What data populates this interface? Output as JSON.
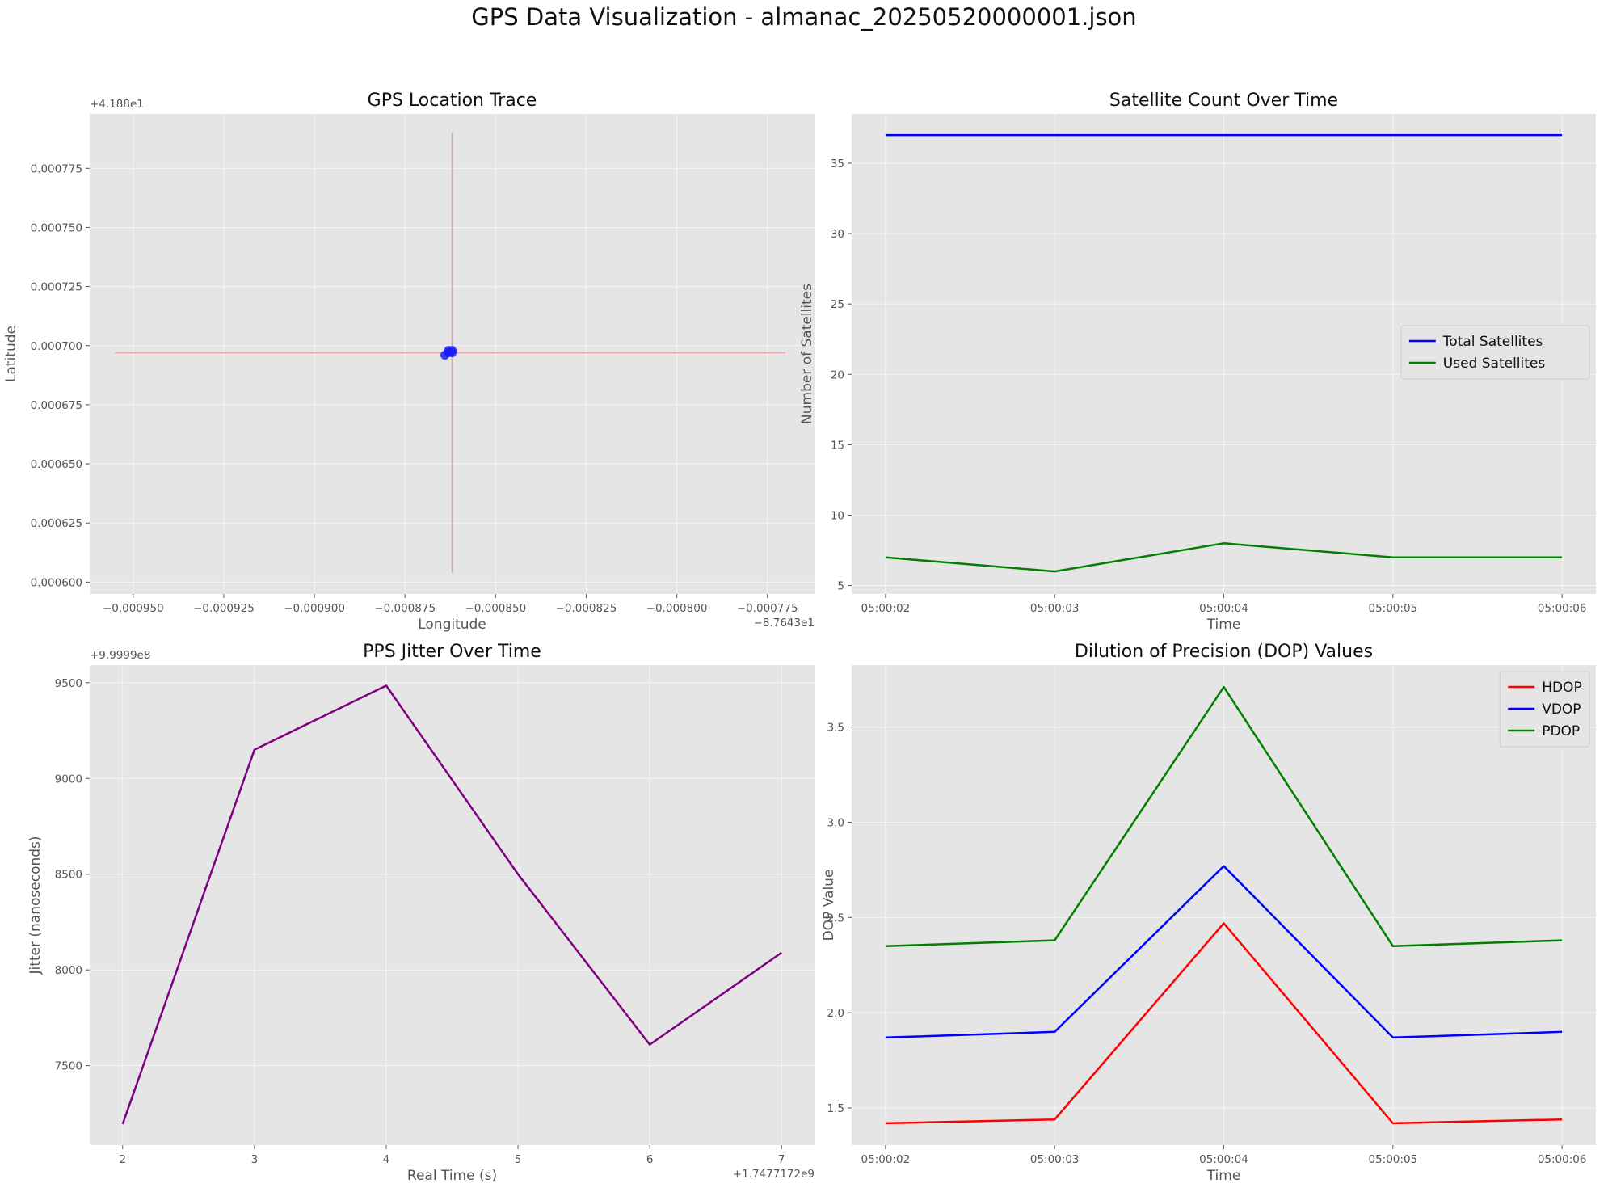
{
  "figure_title": "GPS Data Visualization - almanac_20250520000001.json",
  "colors": {
    "panel_bg": "#e5e5e5",
    "grid": "#ffffff",
    "trace_axis_lines": "#e8a0a0",
    "gps_points": "#1a1aff",
    "total_satellites": "#0000ff",
    "used_satellites": "#008000",
    "jitter": "#800080",
    "hdop": "#ff0000",
    "vdop": "#0000ff",
    "pdop": "#008000"
  },
  "chart_data": [
    {
      "id": "gps-location-trace",
      "type": "scatter",
      "title": "GPS Location Trace",
      "xlabel": "Longitude",
      "ylabel": "Latitude",
      "x_offset_label": "−8.7643e1",
      "y_offset_label": "+4.188e1",
      "xlim": [
        -0.000962,
        -0.000762
      ],
      "ylim": [
        0.000595,
        0.000798
      ],
      "x_ticks": [
        -0.00095,
        -0.000925,
        -0.0009,
        -0.000875,
        -0.00085,
        -0.000825,
        -0.0008,
        -0.000775
      ],
      "x_tick_labels": [
        "−0.000950",
        "−0.000925",
        "−0.000900",
        "−0.000875",
        "−0.000850",
        "−0.000825",
        "−0.000800",
        "−0.000775"
      ],
      "y_ticks": [
        0.0006,
        0.000625,
        0.00065,
        0.000675,
        0.0007,
        0.000725,
        0.00075,
        0.000775
      ],
      "y_tick_labels": [
        "0.000600",
        "0.000625",
        "0.000650",
        "0.000675",
        "0.000700",
        "0.000725",
        "0.000750",
        "0.000775"
      ],
      "crosshair": {
        "x": -0.000862,
        "y": 0.000697,
        "x_range": [
          -0.000955,
          -0.00077
        ],
        "y_range": [
          0.000604,
          0.00079
        ]
      },
      "points": [
        {
          "x": -0.000864,
          "y": 0.000696
        },
        {
          "x": -0.000862,
          "y": 0.000698
        },
        {
          "x": -0.000863,
          "y": 0.000697
        },
        {
          "x": -0.000862,
          "y": 0.000697
        },
        {
          "x": -0.000863,
          "y": 0.000698
        }
      ],
      "grid": true
    },
    {
      "id": "satellite-count",
      "type": "line",
      "title": "Satellite Count Over Time",
      "xlabel": "Time",
      "ylabel": "Number of Satellites",
      "categories": [
        "05:00:02",
        "05:00:03",
        "05:00:04",
        "05:00:05",
        "05:00:06"
      ],
      "ylim": [
        4.4,
        38.5
      ],
      "y_ticks": [
        5,
        10,
        15,
        20,
        25,
        30,
        35
      ],
      "series": [
        {
          "name": "Total Satellites",
          "values": [
            37,
            37,
            37,
            37,
            37
          ],
          "color": "#0000ff"
        },
        {
          "name": "Used Satellites",
          "values": [
            7,
            6,
            8,
            7,
            7
          ],
          "color": "#008000"
        }
      ],
      "legend": "center-right",
      "grid": true
    },
    {
      "id": "pps-jitter",
      "type": "line",
      "title": "PPS Jitter Over Time",
      "xlabel": "Real Time (s)",
      "ylabel": "Jitter (nanoseconds)",
      "x_offset_label": "+1.7477172e9",
      "y_offset_label": "+9.9999e8",
      "x": [
        2,
        3,
        4,
        5,
        6,
        7
      ],
      "xlim": [
        1.75,
        7.25
      ],
      "ylim": [
        7085,
        9592
      ],
      "x_ticks": [
        2,
        3,
        4,
        5,
        6,
        7
      ],
      "y_ticks": [
        7500,
        8000,
        8500,
        9000,
        9500
      ],
      "series": [
        {
          "values": [
            7195,
            9150,
            9485,
            8500,
            7610,
            8090
          ],
          "color": "#800080"
        }
      ],
      "grid": true
    },
    {
      "id": "dop-values",
      "type": "line",
      "title": "Dilution of Precision (DOP) Values",
      "xlabel": "Time",
      "ylabel": "DOP Value",
      "categories": [
        "05:00:02",
        "05:00:03",
        "05:00:04",
        "05:00:05",
        "05:00:06"
      ],
      "ylim": [
        1.305,
        3.825
      ],
      "y_ticks": [
        1.5,
        2.0,
        2.5,
        3.0,
        3.5
      ],
      "y_tick_labels": [
        "1.5",
        "2.0",
        "2.5",
        "3.0",
        "3.5"
      ],
      "series": [
        {
          "name": "HDOP",
          "values": [
            1.42,
            1.44,
            2.47,
            1.42,
            1.44
          ],
          "color": "#ff0000"
        },
        {
          "name": "VDOP",
          "values": [
            1.87,
            1.9,
            2.77,
            1.87,
            1.9
          ],
          "color": "#0000ff"
        },
        {
          "name": "PDOP",
          "values": [
            2.35,
            2.38,
            3.71,
            2.35,
            2.38
          ],
          "color": "#008000"
        }
      ],
      "legend": "top-right",
      "grid": true
    }
  ]
}
